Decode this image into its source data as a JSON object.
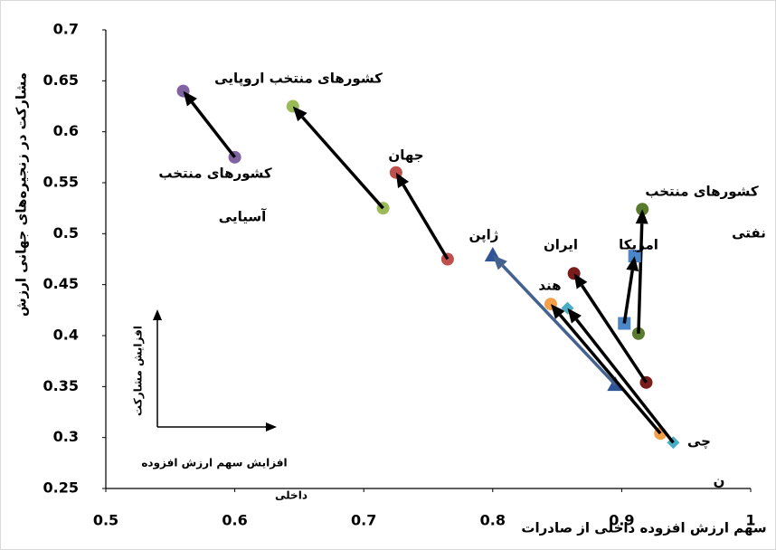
{
  "chart_data": {
    "type": "arrow-scatter",
    "x_label": "سهم ارزش افزوده داخلی از صادرات",
    "y_label": "مشارکت در زنجیره‌های جهانی ارزش",
    "xlim": [
      0.5,
      1
    ],
    "xticks": [
      0.5,
      0.6,
      0.7,
      0.8,
      0.9,
      1
    ],
    "ylim": [
      0.25,
      0.7
    ],
    "yticks": [
      0.25,
      0.3,
      0.35,
      0.4,
      0.45,
      0.5,
      0.55,
      0.6,
      0.65,
      0.7
    ],
    "inset": {
      "y_text": "افزایش مشارکت",
      "x_text": [
        "افزایش سهم ارزش افزوده",
        "داخلی"
      ]
    },
    "series": [
      {
        "label": [
          "کشورهای منتخب",
          "آسیایی"
        ],
        "color": "#8064a2",
        "arrow_color": "#000000",
        "marker": "circle",
        "x": [
          0.6,
          0.56
        ],
        "y": [
          0.575,
          0.64
        ]
      },
      {
        "label": [
          "کشورهای منتخب اروپایی"
        ],
        "color": "#9bbb59",
        "arrow_color": "#000000",
        "marker": "circle",
        "x": [
          0.715,
          0.645
        ],
        "y": [
          0.525,
          0.625
        ]
      },
      {
        "label": [
          "جهان"
        ],
        "color": "#c0504d",
        "arrow_color": "#000000",
        "marker": "circle",
        "x": [
          0.765,
          0.725
        ],
        "y": [
          0.475,
          0.56
        ]
      },
      {
        "label": [
          "ژاپن"
        ],
        "color": "#2f5597",
        "arrow_color": "#44628f",
        "marker": "triangle",
        "x": [
          0.895,
          0.8
        ],
        "y": [
          0.352,
          0.479
        ]
      },
      {
        "label": [
          "کشورهای منتخب",
          "نفتی"
        ],
        "color": "#5a7a2e",
        "arrow_color": "#000000",
        "marker": "circle",
        "x": [
          0.913,
          0.916
        ],
        "y": [
          0.402,
          0.524
        ]
      },
      {
        "label": [
          "ایران"
        ],
        "color": "#7b1c1c",
        "arrow_color": "#000000",
        "marker": "circle",
        "x": [
          0.919,
          0.863
        ],
        "y": [
          0.354,
          0.461
        ]
      },
      {
        "label": [
          "امریکا"
        ],
        "color": "#4a86c8",
        "arrow_color": "#000000",
        "marker": "square",
        "x": [
          0.902,
          0.91
        ],
        "y": [
          0.412,
          0.478
        ]
      },
      {
        "label": [
          "هند"
        ],
        "color": "#f4a04a",
        "arrow_color": "#000000",
        "marker": "circle",
        "x": [
          0.93,
          0.845
        ],
        "y": [
          0.304,
          0.431
        ]
      },
      {
        "label": [
          "چی",
          "ن"
        ],
        "color": "#4bacc6",
        "arrow_color": "#000000",
        "marker": "diamond",
        "x": [
          0.94,
          0.858
        ],
        "y": [
          0.295,
          0.427
        ]
      }
    ]
  }
}
